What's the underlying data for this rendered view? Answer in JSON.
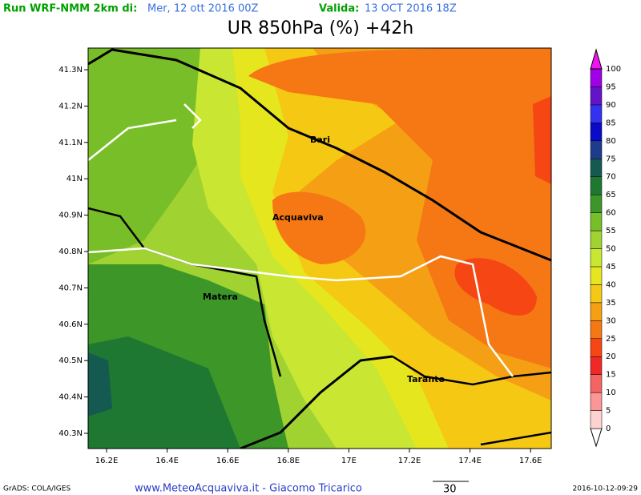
{
  "header": {
    "run_label": "Run WRF-NMM 2km di:",
    "run_date": "Mer, 12 ott 2016 00Z",
    "valid_label": "Valida:",
    "valid_date": "13 OCT 2016 18Z"
  },
  "title": "UR 850hPa (%) +42h",
  "map": {
    "cities": [
      "Bari",
      "Acquaviva",
      "Matera",
      "Taranto"
    ],
    "lon_labels": [
      "16.2E",
      "16.4E",
      "16.6E",
      "16.8E",
      "17E",
      "17.2E",
      "17.4E",
      "17.6E"
    ],
    "lat_labels": [
      "41.3N",
      "41.2N",
      "41.1N",
      "41N",
      "40.9N",
      "40.8N",
      "40.7N",
      "40.6N",
      "40.5N",
      "40.4N",
      "40.3N"
    ]
  },
  "colorbar": {
    "labels": [
      0,
      5,
      10,
      15,
      20,
      25,
      30,
      35,
      40,
      45,
      50,
      55,
      60,
      65,
      70,
      75,
      80,
      85,
      90,
      95,
      100
    ],
    "colors": [
      "#ffd2d2",
      "#fa9696",
      "#f56464",
      "#f02828",
      "#f54614",
      "#f57814",
      "#f5a014",
      "#f5c814",
      "#e6e61e",
      "#c8e632",
      "#a0d232",
      "#78be28",
      "#3c9628",
      "#1e7832",
      "#145a50",
      "#1e3c8c",
      "#0a0ac8",
      "#3232f0",
      "#6414c8",
      "#a000e6",
      "#f014f0"
    ]
  },
  "footer": {
    "credit": "GrADS: COLA/IGES",
    "site": "www.MeteoAcquaviva.it - Giacomo Tricarico",
    "vector_scale": "30",
    "timestamp": "2016-10-12-09:29"
  }
}
